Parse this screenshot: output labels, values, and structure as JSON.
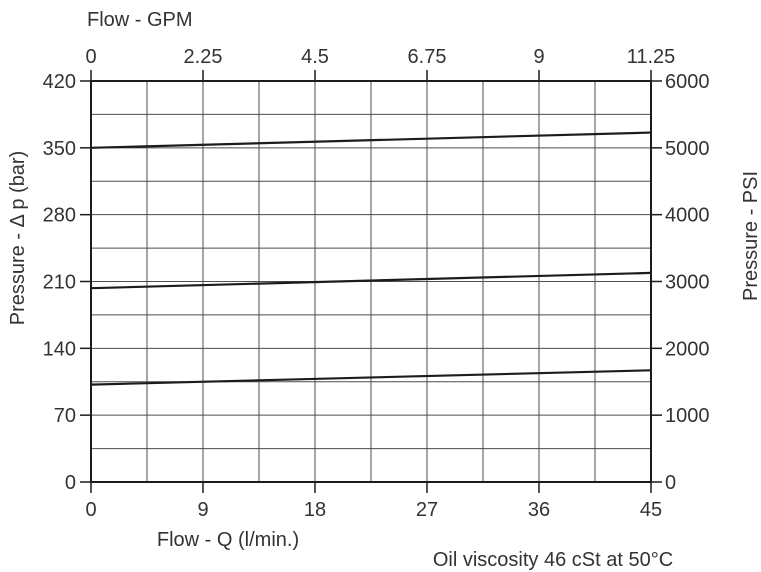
{
  "chart_data": {
    "type": "line",
    "x_axis": {
      "label": "Flow - Q (l/min.)",
      "range": [
        0,
        45
      ],
      "ticks": [
        0,
        9,
        18,
        27,
        36,
        45
      ]
    },
    "x2_axis": {
      "label": "Flow - GPM",
      "range": [
        0,
        11.25
      ],
      "ticks": [
        0,
        2.25,
        4.5,
        6.75,
        9,
        11.25
      ]
    },
    "y_axis": {
      "label": "Pressure - Δ p (bar)",
      "range": [
        0,
        420
      ],
      "ticks": [
        0,
        70,
        140,
        210,
        280,
        350,
        420
      ]
    },
    "y2_axis": {
      "label": "Pressure - PSI",
      "range": [
        0,
        6000
      ],
      "ticks": [
        0,
        1000,
        2000,
        3000,
        4000,
        5000,
        6000
      ]
    },
    "grid": {
      "shown": true,
      "x_step": 4.5,
      "y_step": 35
    },
    "series": [
      {
        "x": [
          0,
          45
        ],
        "y": [
          350,
          366
        ]
      },
      {
        "x": [
          0,
          45
        ],
        "y": [
          203,
          219
        ]
      },
      {
        "x": [
          0,
          45
        ],
        "y": [
          102,
          117
        ]
      }
    ],
    "annotations": [
      "Oil viscosity 46 cSt at 50°C"
    ],
    "colors": {
      "line": "#1c1c1c",
      "grid": "#4d4d4d",
      "frame": "#1c1c1c",
      "text": "#333333"
    }
  }
}
